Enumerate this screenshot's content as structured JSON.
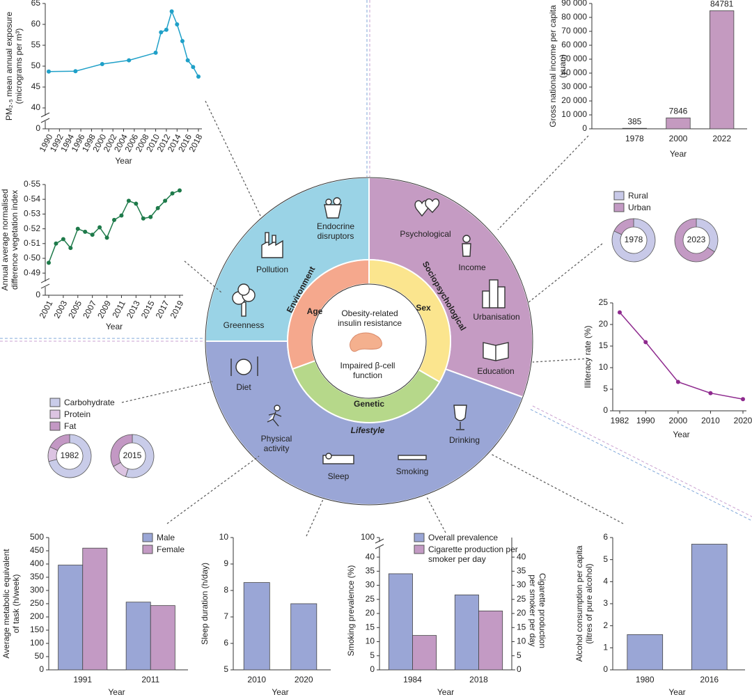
{
  "chart_data": [
    {
      "type": "line",
      "x": [
        1990,
        1995,
        2000,
        2005,
        2010,
        2011,
        2012,
        2013,
        2014,
        2015,
        2016,
        2017,
        2018
      ],
      "series": [
        {
          "color": "#1fa0c8",
          "values": [
            48.7,
            48.8,
            50.5,
            51.4,
            53.2,
            58.1,
            58.7,
            63.1,
            60.0,
            56.0,
            51.4,
            49.8,
            47.5
          ]
        }
      ],
      "xlim": [
        1990,
        2018
      ],
      "xticks": [
        1990,
        1992,
        1994,
        1996,
        1998,
        2000,
        2002,
        2004,
        2006,
        2008,
        2010,
        2012,
        2014,
        2016,
        2018
      ],
      "ylim": [
        35,
        65
      ],
      "yticks": [
        40,
        45,
        50,
        55,
        60,
        65
      ],
      "axis_break_label": 0,
      "x_label": "Year",
      "y_label": [
        "PM₂.₅ mean annual exposure",
        "(micrograms per m³)"
      ]
    },
    {
      "type": "line",
      "x": [
        2001,
        2002,
        2003,
        2004,
        2005,
        2006,
        2007,
        2008,
        2009,
        2010,
        2011,
        2012,
        2013,
        2014,
        2015,
        2016,
        2017,
        2018,
        2019
      ],
      "series": [
        {
          "color": "#1e7a4a",
          "values": [
            0.497,
            0.51,
            0.513,
            0.507,
            0.52,
            0.518,
            0.516,
            0.521,
            0.514,
            0.526,
            0.529,
            0.539,
            0.537,
            0.527,
            0.528,
            0.534,
            0.539,
            0.544,
            0.546
          ]
        }
      ],
      "xlim": [
        2001,
        2019
      ],
      "xticks": [
        2001,
        2003,
        2005,
        2007,
        2009,
        2011,
        2013,
        2015,
        2017,
        2019
      ],
      "ylim": [
        0.475,
        0.55
      ],
      "yticks": [
        {
          "value": 0.49,
          "label": "0·49"
        },
        {
          "value": 0.5,
          "label": "0·50"
        },
        {
          "value": 0.51,
          "label": "0·51"
        },
        {
          "value": 0.52,
          "label": "0·52"
        },
        {
          "value": 0.53,
          "label": "0·53"
        },
        {
          "value": 0.54,
          "label": "0·54"
        },
        {
          "value": 0.55,
          "label": "0·55"
        }
      ],
      "axis_break_label": 0,
      "x_label": "Year",
      "y_label": [
        "Annual average normalised",
        "difference vegetation index"
      ]
    },
    {
      "type": "bar",
      "categories": [
        "1978",
        "2000",
        "2022"
      ],
      "values": [
        385,
        7846,
        84781
      ],
      "color": "#c49ac0",
      "data_labels": true,
      "ylim": [
        0,
        90000
      ],
      "yticks": [
        0,
        {
          "value": 10000,
          "label": "10 000"
        },
        {
          "value": 20000,
          "label": "20 000"
        },
        {
          "value": 30000,
          "label": "30 000"
        },
        {
          "value": 40000,
          "label": "40 000"
        },
        {
          "value": 50000,
          "label": "50 000"
        },
        {
          "value": 60000,
          "label": "60 000"
        },
        {
          "value": 70000,
          "label": "70 000"
        },
        {
          "value": 80000,
          "label": "80 000"
        },
        {
          "value": 90000,
          "label": "90 000"
        }
      ],
      "x_label": "Year",
      "y_label": [
        "Gross national income per capita",
        "(yuan)"
      ]
    },
    {
      "type": "donut",
      "categories": [
        "1978",
        "2023"
      ],
      "series": [
        {
          "name": "Rural",
          "color": "#c8c9e8",
          "values": [
            82,
            34
          ]
        },
        {
          "name": "Urban",
          "color": "#c39ac4",
          "values": [
            18,
            66
          ]
        }
      ]
    },
    {
      "type": "line",
      "x": [
        1982,
        1990,
        2000,
        2010,
        2020
      ],
      "series": [
        {
          "color": "#8e2a8e",
          "values": [
            22.8,
            15.9,
            6.7,
            4.1,
            2.7
          ]
        }
      ],
      "xlim": [
        1982,
        2020
      ],
      "xticks": [
        1982,
        1990,
        2000,
        2010,
        2020
      ],
      "ylim": [
        0,
        25
      ],
      "yticks": [
        0,
        5,
        10,
        15,
        20,
        25
      ],
      "x_label": "Year",
      "y_label": [
        "Illiteracy rate (%)"
      ]
    },
    {
      "type": "donut",
      "categories": [
        "1982",
        "2015"
      ],
      "series": [
        {
          "name": "Carbohydrate",
          "color": "#c9cce9",
          "values": [
            71,
            55
          ]
        },
        {
          "name": "Protein",
          "color": "#dcc4e2",
          "values": [
            11,
            12
          ]
        },
        {
          "name": "Fat",
          "color": "#c398c4",
          "values": [
            18,
            33
          ]
        }
      ]
    },
    {
      "type": "bar",
      "categories": [
        "1991",
        "2011"
      ],
      "series": [
        {
          "name": "Male",
          "color": "#9aa6d6",
          "values": [
            396,
            256
          ]
        },
        {
          "name": "Female",
          "color": "#c39ac4",
          "values": [
            460,
            243
          ]
        }
      ],
      "ylim": [
        0,
        500
      ],
      "yticks": [
        0,
        50,
        100,
        150,
        200,
        250,
        300,
        350,
        400,
        450,
        500
      ],
      "x_label": "Year",
      "y_label": [
        "Average metabolic equivalent",
        "of task (h/week)"
      ]
    },
    {
      "type": "bar",
      "categories": [
        "2010",
        "2020"
      ],
      "values": [
        8.3,
        7.5
      ],
      "color": "#9aa6d6",
      "ylim": [
        5,
        10
      ],
      "yticks": [
        5,
        6,
        7,
        8,
        9,
        10
      ],
      "x_label": "Year",
      "y_label": [
        "Sleep duration (h/day)"
      ]
    },
    {
      "type": "bar",
      "categories": [
        "1984",
        "2018"
      ],
      "series": [
        {
          "name": "Overall prevalence",
          "color": "#9aa6d6",
          "values": [
            34.1,
            26.6
          ]
        },
        {
          "name": "Cigarette production per smoker per day",
          "color": "#c39ac4",
          "values": [
            12.2,
            20.9
          ],
          "axis": "y2"
        }
      ],
      "ylim": [
        0,
        42
      ],
      "yticks": [
        0,
        5,
        10,
        15,
        20,
        25,
        30,
        35,
        40
      ],
      "axis_break_label": 100,
      "y2lim": [
        0,
        42
      ],
      "y2ticks": [
        0,
        5,
        10,
        15,
        20,
        25,
        30,
        35,
        40
      ],
      "x_label": "Year",
      "y_label": [
        "Smoking prevalence (%)"
      ],
      "y2_label": [
        "Cigarette production",
        "per smoker per day"
      ]
    },
    {
      "type": "bar",
      "categories": [
        "1980",
        "2016"
      ],
      "values": [
        1.6,
        5.7
      ],
      "color": "#9aa6d6",
      "ylim": [
        0,
        6
      ],
      "yticks": [
        0,
        1,
        2,
        3,
        4,
        5,
        6
      ],
      "x_label": "Year",
      "y_label": [
        "Alcohol consumption per capita",
        "(litres of pure alcohol)"
      ]
    }
  ],
  "diagram": {
    "outer": [
      {
        "label": "Environment",
        "items": [
          "Endocrine disruptors",
          "Pollution",
          "Greenness"
        ]
      },
      {
        "label": "Sociopsychological",
        "items": [
          "Psychological",
          "Income",
          "Urbanisation",
          "Education"
        ]
      },
      {
        "label": "Lifestyle",
        "items": [
          "Diet",
          "Physical activity",
          "Sleep",
          "Smoking",
          "Drinking"
        ]
      }
    ],
    "inner": [
      "Age",
      "Sex",
      "Genetic"
    ],
    "center": [
      "Obesity-related insulin resistance",
      "Impaired β-cell function"
    ]
  }
}
